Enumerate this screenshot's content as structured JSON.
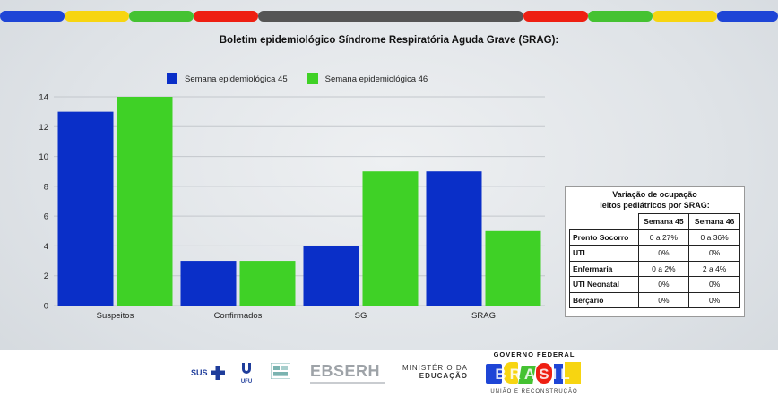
{
  "header": {
    "colors": [
      "#1e45d6",
      "#f7d511",
      "#45c232",
      "#ee1f12",
      "#555555",
      "#ee1f12",
      "#45c232",
      "#f7d511",
      "#1e45d6"
    ]
  },
  "chart_data": {
    "type": "bar",
    "title": "Boletim epidemiológico Síndrome Respiratória Aguda Grave (SRAG):",
    "categories": [
      "Suspeitos",
      "Confirmados",
      "SG",
      "SRAG"
    ],
    "series": [
      {
        "name": "Semana epidemiológica 45",
        "color": "#0a2fc8",
        "values": [
          13,
          3,
          4,
          9
        ]
      },
      {
        "name": "Semana epidemiológica 46",
        "color": "#3fd126",
        "values": [
          14,
          3,
          9,
          5
        ]
      }
    ],
    "yticks": [
      "0",
      "2",
      "4",
      "6",
      "8",
      "10",
      "12",
      "14"
    ],
    "ylim": [
      0,
      14
    ],
    "grid": true,
    "legend": "top"
  },
  "occupancy": {
    "title_line1": "Variação de ocupação",
    "title_line2": "leitos pediátricos por SRAG:",
    "headers": [
      "Semana 45",
      "Semana 46"
    ],
    "rows": [
      {
        "label": "Pronto Socorro",
        "w45": "0 a 27%",
        "w46": "0 a 36%"
      },
      {
        "label": "UTI",
        "w45": "0%",
        "w46": "0%"
      },
      {
        "label": "Enfermaria",
        "w45": "0 a 2%",
        "w46": "2 a 4%"
      },
      {
        "label": "UTI Neonatal",
        "w45": "0%",
        "w46": "0%"
      },
      {
        "label": "Berçário",
        "w45": "0%",
        "w46": "0%"
      }
    ]
  },
  "footer": {
    "sus": "SUS",
    "ufu": "UFU",
    "ebserh": "EBSERH",
    "ministerio_line1": "MINISTÉRIO DA",
    "ministerio_line2": "EDUCAÇÃO",
    "governo": "GOVERNO FEDERAL",
    "brasil": "BRASIL",
    "uniao": "UNIÃO E RECONSTRUÇÃO"
  }
}
